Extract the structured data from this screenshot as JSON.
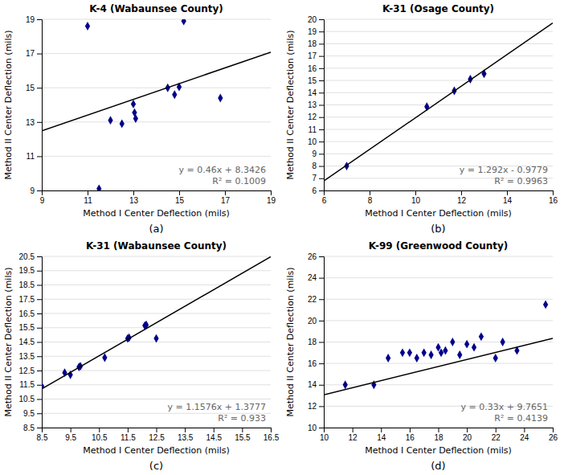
{
  "chart_data": [
    {
      "type": "scatter",
      "title": "K-4 (Wabaunsee County)",
      "xlabel": "Method I Center Deflection (mils)",
      "ylabel": "Method II Center Deflection (mils)",
      "label": "(a)",
      "xlim": [
        9,
        19
      ],
      "ylim": [
        9,
        19
      ],
      "xticks": [
        9,
        11,
        13,
        15,
        17,
        19
      ],
      "yticks": [
        9,
        11,
        13,
        15,
        17,
        19
      ],
      "grid": "y",
      "annotations": [
        "y = 0.46x + 8.3426",
        "R² = 0.1009"
      ],
      "series": [
        {
          "type": "scatter",
          "marker": "diamond",
          "color": "#00008B",
          "x": [
            11.0,
            11.5,
            12.0,
            12.5,
            13.0,
            13.05,
            13.1,
            14.5,
            15.0,
            15.2,
            16.8,
            14.8
          ],
          "values": [
            18.6,
            9.1,
            13.1,
            12.9,
            14.05,
            13.55,
            13.2,
            15.0,
            15.05,
            18.9,
            14.4,
            14.6
          ]
        },
        {
          "type": "line",
          "color": "#000000",
          "x": [
            9,
            19
          ],
          "values": [
            12.4826,
            17.0826
          ]
        }
      ]
    },
    {
      "type": "scatter",
      "title": "K-31 (Osage County)",
      "xlabel": "Method I Center Deflection (mils)",
      "ylabel": "Method II Center Deflection (mils)",
      "label": "(b)",
      "xlim": [
        6,
        16
      ],
      "ylim": [
        6,
        20
      ],
      "xticks": [
        6,
        8,
        10,
        12,
        14,
        16
      ],
      "yticks": [
        6,
        7,
        8,
        9,
        10,
        11,
        12,
        13,
        14,
        15,
        16,
        17,
        18,
        19,
        20
      ],
      "grid": "y",
      "annotations": [
        "y = 1.292x - 0.9779",
        "R² = 0.9963"
      ],
      "series": [
        {
          "type": "scatter",
          "marker": "diamond",
          "color": "#00008B",
          "x": [
            7.0,
            10.5,
            11.7,
            12.4,
            13.0
          ],
          "values": [
            8.0,
            12.85,
            14.15,
            15.1,
            15.55
          ]
        },
        {
          "type": "line",
          "color": "#000000",
          "x": [
            6,
            16
          ],
          "values": [
            6.7741,
            19.6941
          ]
        }
      ]
    },
    {
      "type": "scatter",
      "title": "K-31 (Wabaunsee County)",
      "xlabel": "Method I Center Deflection (mils)",
      "ylabel": "Method II Center Deflection (mils)",
      "label": "(c)",
      "xlim": [
        8.5,
        16.5
      ],
      "ylim": [
        8.5,
        20.5
      ],
      "xticks": [
        8.5,
        9.5,
        10.5,
        11.5,
        12.5,
        13.5,
        14.5,
        15.5,
        16.5
      ],
      "yticks": [
        8.5,
        9.5,
        10.5,
        11.5,
        12.5,
        13.5,
        14.5,
        15.5,
        16.5,
        17.5,
        18.5,
        19.5,
        20.5
      ],
      "grid": "y",
      "annotations": [
        "y = 1.1576x + 1.3777",
        "R² = 0.933"
      ],
      "series": [
        {
          "type": "scatter",
          "marker": "diamond",
          "color": "#00008B",
          "x": [
            8.5,
            9.3,
            9.5,
            9.8,
            9.85,
            10.7,
            11.5,
            11.55,
            12.1,
            12.15,
            12.5
          ],
          "values": [
            11.4,
            12.35,
            12.2,
            12.75,
            12.8,
            13.4,
            14.75,
            14.8,
            15.65,
            15.7,
            14.75
          ]
        },
        {
          "type": "line",
          "color": "#000000",
          "x": [
            8.5,
            16.5
          ],
          "values": [
            11.2173,
            20.4781
          ]
        }
      ]
    },
    {
      "type": "scatter",
      "title": "K-99 (Greenwood County)",
      "xlabel": "Method I Center Deflection (mils)",
      "ylabel": "Method II Center Deflection (mils)",
      "label": "(d)",
      "xlim": [
        10,
        26
      ],
      "ylim": [
        10,
        26
      ],
      "xticks": [
        10,
        12,
        14,
        16,
        18,
        20,
        22,
        24,
        26
      ],
      "yticks": [
        10,
        12,
        14,
        16,
        18,
        20,
        22,
        24,
        26
      ],
      "grid": "y",
      "annotations": [
        "y = 0.33x + 9.7651",
        "R² = 0.4139"
      ],
      "series": [
        {
          "type": "scatter",
          "marker": "diamond",
          "color": "#00008B",
          "x": [
            11.5,
            13.5,
            14.5,
            15.5,
            16.0,
            16.5,
            17.0,
            17.5,
            18.0,
            18.2,
            18.5,
            19.0,
            19.5,
            20.0,
            20.5,
            21.0,
            22.0,
            22.5,
            23.5,
            25.5
          ],
          "values": [
            14.0,
            14.0,
            16.5,
            17.0,
            17.0,
            16.5,
            17.0,
            16.8,
            17.5,
            17.0,
            17.2,
            18.0,
            16.8,
            17.8,
            17.5,
            18.5,
            16.5,
            18.0,
            17.2,
            21.5
          ]
        },
        {
          "type": "line",
          "color": "#000000",
          "x": [
            10,
            26
          ],
          "values": [
            13.0651,
            18.3451
          ]
        }
      ]
    }
  ]
}
